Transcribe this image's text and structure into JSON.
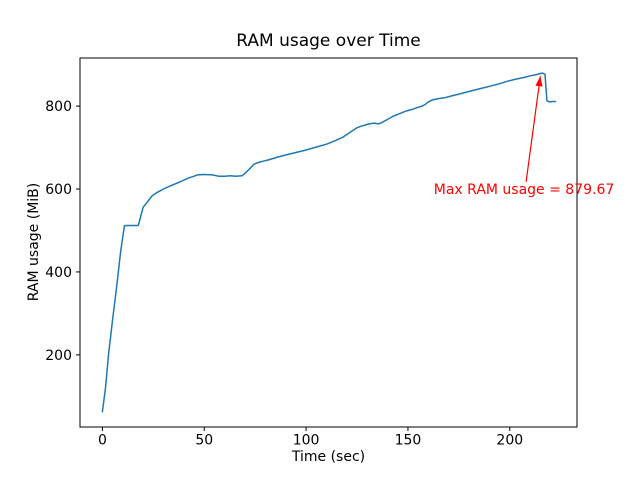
{
  "figure": {
    "background": "#ffffff"
  },
  "chart_data": {
    "type": "line",
    "title": "RAM usage over Time",
    "xlabel": "Time (sec)",
    "ylabel": "RAM usage (MiB)",
    "xticks": [
      0,
      50,
      100,
      150,
      200
    ],
    "yticks": [
      200,
      400,
      600,
      800
    ],
    "xlim": [
      -11,
      233
    ],
    "ylim": [
      26,
      916
    ],
    "grid": false,
    "legend": "none",
    "axis_color": "#000000",
    "line_color": "#1f77b4",
    "max_ram_value": 879.67,
    "series": [
      {
        "name": "RAM usage",
        "points": [
          [
            0,
            63
          ],
          [
            1.5,
            120
          ],
          [
            3,
            200
          ],
          [
            5,
            285
          ],
          [
            7,
            365
          ],
          [
            9,
            450
          ],
          [
            10.8,
            511
          ],
          [
            12,
            512
          ],
          [
            17.6,
            512
          ],
          [
            20,
            556
          ],
          [
            24.5,
            584
          ],
          [
            27,
            592
          ],
          [
            30,
            600
          ],
          [
            34,
            609
          ],
          [
            38,
            617
          ],
          [
            42,
            626
          ],
          [
            45,
            631
          ],
          [
            46.6,
            634
          ],
          [
            50,
            635
          ],
          [
            54,
            634
          ],
          [
            57,
            631
          ],
          [
            60,
            631
          ],
          [
            63,
            632
          ],
          [
            65.2,
            631
          ],
          [
            68.6,
            632
          ],
          [
            70,
            638
          ],
          [
            72.5,
            650
          ],
          [
            74.5,
            660
          ],
          [
            76.5,
            664
          ],
          [
            79,
            667
          ],
          [
            82,
            671
          ],
          [
            86,
            677
          ],
          [
            90,
            682
          ],
          [
            95,
            688
          ],
          [
            100,
            694
          ],
          [
            105,
            701
          ],
          [
            110,
            708
          ],
          [
            114,
            716
          ],
          [
            118,
            725
          ],
          [
            122,
            738
          ],
          [
            125,
            748
          ],
          [
            128,
            753
          ],
          [
            131,
            757
          ],
          [
            133.5,
            759
          ],
          [
            135.5,
            757
          ],
          [
            137,
            760
          ],
          [
            140,
            768
          ],
          [
            143,
            776
          ],
          [
            146,
            782
          ],
          [
            149,
            788
          ],
          [
            152,
            792
          ],
          [
            155,
            797
          ],
          [
            157,
            800
          ],
          [
            158.5,
            804
          ],
          [
            160,
            810
          ],
          [
            162,
            815
          ],
          [
            165,
            818
          ],
          [
            168,
            820
          ],
          [
            171,
            824
          ],
          [
            175,
            829
          ],
          [
            179,
            834
          ],
          [
            183,
            839
          ],
          [
            187,
            844
          ],
          [
            191,
            849
          ],
          [
            195,
            854
          ],
          [
            199,
            860
          ],
          [
            203,
            865
          ],
          [
            207,
            869
          ],
          [
            210,
            873
          ],
          [
            213,
            876
          ],
          [
            216,
            879.67
          ],
          [
            217.3,
            877
          ],
          [
            218.2,
            813
          ],
          [
            219.5,
            810
          ],
          [
            221,
            811
          ],
          [
            222.5,
            811
          ]
        ]
      }
    ],
    "annotation": {
      "label": "Max RAM usage = 879.67",
      "color": "#ff0000",
      "text_xy": [
        207,
        598
      ],
      "arrow_from": [
        208,
        617
      ],
      "arrow_to": [
        215,
        872
      ]
    }
  }
}
